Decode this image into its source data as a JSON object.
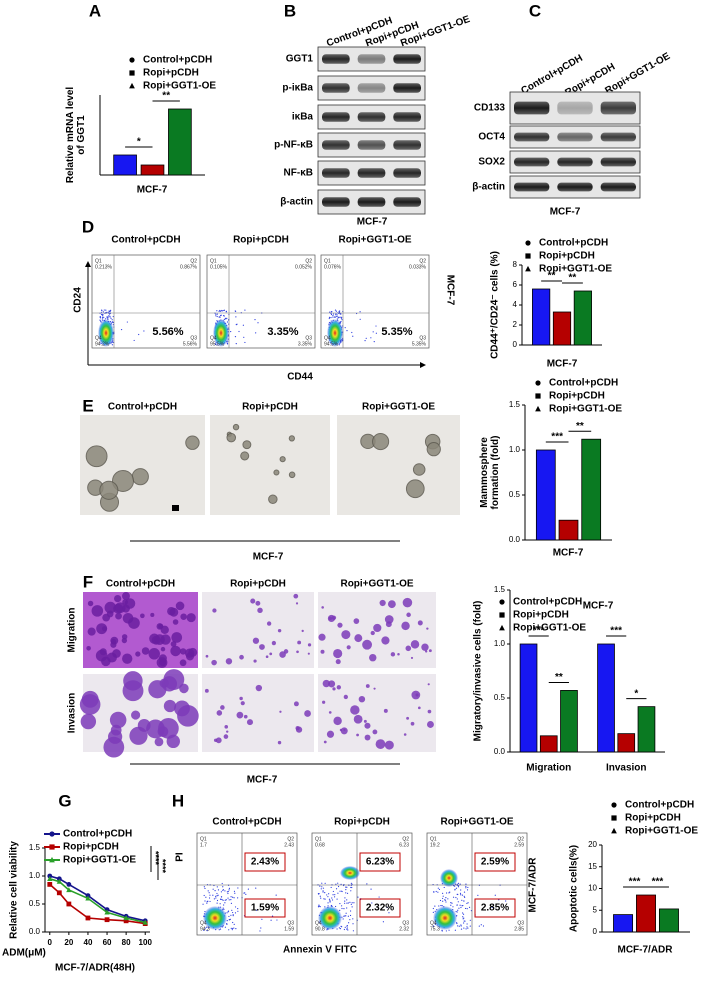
{
  "panel_letters": [
    "A",
    "B",
    "C",
    "D",
    "E",
    "F",
    "G",
    "H"
  ],
  "blot_b": {
    "columns": [
      "Control+pCDH",
      "Ropi+pCDH",
      "Ropi+GGT1-OE"
    ],
    "rows": [
      "GGT1",
      "p-iκBa",
      "iκBa",
      "p-NF-κB",
      "NF-κB",
      "β-actin"
    ],
    "cell_line": "MCF-7"
  },
  "blot_c": {
    "columns": [
      "Control+pCDH",
      "Ropi+pCDH",
      "Ropi+GGT1-OE"
    ],
    "rows": [
      "CD133",
      "OCT4",
      "SOX2",
      "β-actin"
    ],
    "cell_line": "MCF-7"
  },
  "flow_d": {
    "plots": [
      {
        "title": "Control+pCDH",
        "percent": "5.56%",
        "quadrants": [
          {
            "name": "Q1",
            "value": "0.213%"
          },
          {
            "name": "Q2",
            "value": "0.867%"
          },
          {
            "name": "Q4",
            "value": "94.2%"
          },
          {
            "name": "Q3",
            "value": "5.56%"
          }
        ]
      },
      {
        "title": "Ropi+pCDH",
        "percent": "3.35%",
        "quadrants": [
          {
            "name": "Q1",
            "value": "0.105%"
          },
          {
            "name": "Q2",
            "value": "0.052%"
          },
          {
            "name": "Q4",
            "value": "95.5%"
          },
          {
            "name": "Q3",
            "value": "3.35%"
          }
        ]
      },
      {
        "title": "Ropi+GGT1-OE",
        "percent": "5.35%",
        "quadrants": [
          {
            "name": "Q1",
            "value": "0.076%"
          },
          {
            "name": "Q2",
            "value": "0.033%"
          },
          {
            "name": "Q4",
            "value": "94.5%"
          },
          {
            "name": "Q3",
            "value": "5.35%"
          }
        ]
      }
    ],
    "y_label": "CD24",
    "x_label": "CD44",
    "side_label": "MCF-7"
  },
  "spheres_e": {
    "titles": [
      "Control+pCDH",
      "Ropi+pCDH",
      "Ropi+GGT1-OE"
    ],
    "cell_line": "MCF-7"
  },
  "transwell_f": {
    "titles": [
      "Control+pCDH",
      "Ropi+pCDH",
      "Ropi+GGT1-OE"
    ],
    "rows": [
      "Migration",
      "Invasion"
    ],
    "cell_line": "MCF-7"
  },
  "flow_h": {
    "plots": [
      {
        "title": "Control+pCDH",
        "upper": "2.43%",
        "lower": "1.59%",
        "quadrants": [
          {
            "name": "Q1",
            "value": "1.7"
          },
          {
            "name": "Q2",
            "value": "2.43"
          },
          {
            "name": "Q4",
            "value": "94.3"
          },
          {
            "name": "Q3",
            "value": "1.59"
          }
        ]
      },
      {
        "title": "Ropi+pCDH",
        "upper": "6.23%",
        "lower": "2.32%",
        "quadrants": [
          {
            "name": "Q1",
            "value": "0.68"
          },
          {
            "name": "Q2",
            "value": "6.23"
          },
          {
            "name": "Q4",
            "value": "90.8"
          },
          {
            "name": "Q3",
            "value": "2.32"
          }
        ]
      },
      {
        "title": "Ropi+GGT1-OE",
        "upper": "2.59%",
        "lower": "2.85%",
        "quadrants": [
          {
            "name": "Q1",
            "value": "19.2"
          },
          {
            "name": "Q2",
            "value": "2.59"
          },
          {
            "name": "Q4",
            "value": "75.3"
          },
          {
            "name": "Q3",
            "value": "2.85"
          }
        ]
      }
    ],
    "y_label": "PI",
    "x_label": "Annexin V FITC",
    "side_label": "MCF-7/ADR"
  },
  "chart_data": [
    {
      "type": "bar",
      "y_label": [
        "Relative mRNA level",
        "of GGT1"
      ],
      "x_label": "MCF-7",
      "ylim": [
        0,
        4
      ],
      "series": [
        {
          "name": "Control+pCDH",
          "color": "#1717f2",
          "marker": "circle",
          "values": [
            1.0
          ]
        },
        {
          "name": "Ropi+pCDH",
          "color": "#b50000",
          "marker": "square",
          "values": [
            0.5
          ]
        },
        {
          "name": "Ropi+GGT1-OE",
          "color": "#0a7a22",
          "marker": "triangle",
          "values": [
            3.3
          ]
        }
      ],
      "annotations": [
        "*",
        "**"
      ]
    },
    {
      "type": "bar",
      "y_label": [
        "CD44⁺/CD24⁻ cells (%)"
      ],
      "x_label": "MCF-7",
      "ylim": [
        0,
        8
      ],
      "yticks": [
        0,
        2,
        4,
        6,
        8
      ],
      "series": [
        {
          "name": "Control+pCDH",
          "color": "#1717f2",
          "marker": "circle",
          "values": [
            5.6
          ]
        },
        {
          "name": "Ropi+pCDH",
          "color": "#b50000",
          "marker": "square",
          "values": [
            3.3
          ]
        },
        {
          "name": "Ropi+GGT1-OE",
          "color": "#0a7a22",
          "marker": "triangle",
          "values": [
            5.4
          ]
        }
      ],
      "annotations": [
        "**",
        "**"
      ]
    },
    {
      "type": "bar",
      "y_label": [
        "Mammosphere",
        "formation (fold)"
      ],
      "x_label": "MCF-7",
      "ylim": [
        0,
        1.5
      ],
      "yticks": [
        {
          "value": 0,
          "label": "0.0"
        },
        {
          "value": 0.5,
          "label": "0.5"
        },
        {
          "value": 1,
          "label": "1.0"
        },
        {
          "value": 1.5,
          "label": "1.5"
        }
      ],
      "series": [
        {
          "name": "Control+pCDH",
          "color": "#1717f2",
          "marker": "circle",
          "values": [
            1.0
          ]
        },
        {
          "name": "Ropi+pCDH",
          "color": "#b50000",
          "marker": "square",
          "values": [
            0.22
          ]
        },
        {
          "name": "Ropi+GGT1-OE",
          "color": "#0a7a22",
          "marker": "triangle",
          "values": [
            1.12
          ]
        }
      ],
      "annotations": [
        "***",
        "**"
      ]
    },
    {
      "type": "bar",
      "y_label": [
        "Migratory/invasive cells (fold)"
      ],
      "inset_label": "MCF-7",
      "categories": [
        "Migration",
        "Invasion"
      ],
      "ylim": [
        0,
        1.5
      ],
      "yticks": [
        {
          "value": 0,
          "label": "0.0"
        },
        {
          "value": 0.5,
          "label": "0.5"
        },
        {
          "value": 1,
          "label": "1.0"
        },
        {
          "value": 1.5,
          "label": "1.5"
        }
      ],
      "series": [
        {
          "name": "Control+pCDH",
          "color": "#1717f2",
          "marker": "circle",
          "values": [
            1.0,
            1.0
          ]
        },
        {
          "name": "Ropi+pCDH",
          "color": "#b50000",
          "marker": "square",
          "values": [
            0.15,
            0.17
          ]
        },
        {
          "name": "Ropi+GGT1-OE",
          "color": "#0a7a22",
          "marker": "triangle",
          "values": [
            0.57,
            0.42
          ]
        }
      ],
      "annotations": [
        "***",
        "**",
        "***",
        "*"
      ]
    },
    {
      "type": "line",
      "y_label": [
        "Relative cell viability"
      ],
      "x_label": "ADM(μM)",
      "title": "MCF-7/ADR(48H)",
      "x": [
        0,
        10,
        20,
        40,
        60,
        80,
        100
      ],
      "xlim": [
        -5,
        105
      ],
      "xticks": [
        0,
        20,
        40,
        60,
        80,
        100
      ],
      "ylim": [
        0,
        1.5
      ],
      "yticks": [
        {
          "value": 0,
          "label": "0.0"
        },
        {
          "value": 0.5,
          "label": "0.5"
        },
        {
          "value": 1,
          "label": "1.0"
        },
        {
          "value": 1.5,
          "label": "1.5"
        }
      ],
      "series": [
        {
          "name": "Control+pCDH",
          "color": "#14148c",
          "marker": "circle",
          "values": [
            1.0,
            0.95,
            0.85,
            0.65,
            0.4,
            0.28,
            0.2
          ]
        },
        {
          "name": "Ropi+pCDH",
          "color": "#b50000",
          "marker": "square",
          "values": [
            0.85,
            0.7,
            0.5,
            0.25,
            0.22,
            0.2,
            0.15
          ]
        },
        {
          "name": "Ropi+GGT1-OE",
          "color": "#2aa02a",
          "marker": "triangle",
          "values": [
            0.95,
            0.9,
            0.75,
            0.6,
            0.35,
            0.25,
            0.17
          ]
        }
      ],
      "annotations": [
        "****",
        "****"
      ]
    },
    {
      "type": "bar",
      "y_label": [
        "Apoptotic cells(%)"
      ],
      "x_label": "MCF-7/ADR",
      "ylim": [
        0,
        20
      ],
      "yticks": [
        0,
        5,
        10,
        15,
        20
      ],
      "series": [
        {
          "name": "Control+pCDH",
          "color": "#1717f2",
          "marker": "circle",
          "values": [
            4.0
          ]
        },
        {
          "name": "Ropi+pCDH",
          "color": "#b50000",
          "marker": "square",
          "values": [
            8.5
          ]
        },
        {
          "name": "Ropi+GGT1-OE",
          "color": "#0a7a22",
          "marker": "triangle",
          "values": [
            5.3
          ]
        }
      ],
      "annotations": [
        "***",
        "***"
      ]
    }
  ]
}
